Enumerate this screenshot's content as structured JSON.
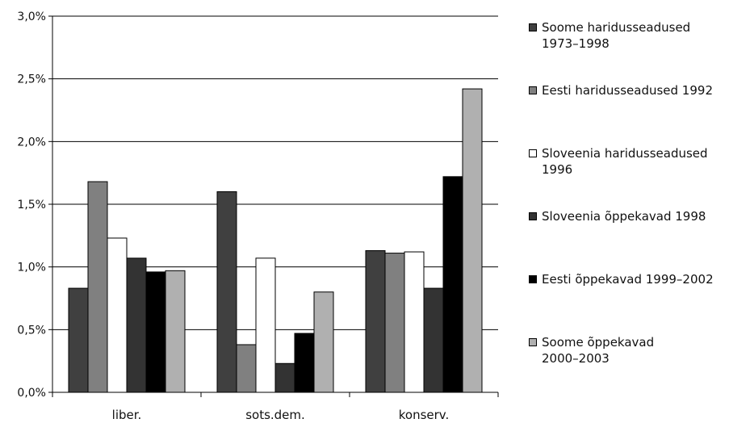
{
  "chart_data": {
    "type": "bar",
    "categories": [
      "liber.",
      "sots.dem.",
      "konserv."
    ],
    "series": [
      {
        "name": "Soome haridusseadused\n1973–1998",
        "values": [
          0.83,
          1.6,
          1.13
        ],
        "color": "#404040"
      },
      {
        "name": "Eesti haridusseadused 1992",
        "values": [
          1.68,
          0.38,
          1.11
        ],
        "color": "#808080"
      },
      {
        "name": "Sloveenia haridusseadused\n1996",
        "values": [
          1.23,
          1.07,
          1.12
        ],
        "color": "#ffffff"
      },
      {
        "name": "Sloveenia õppekavad 1998",
        "values": [
          1.07,
          0.23,
          0.83
        ],
        "color": "#333333"
      },
      {
        "name": "Eesti õppekavad 1999–2002",
        "values": [
          0.96,
          0.47,
          1.72
        ],
        "color": "#000000"
      },
      {
        "name": "Soome õppekavad\n2000–2003",
        "values": [
          0.97,
          0.8,
          2.42
        ],
        "color": "#b0b0b0"
      }
    ],
    "y_ticks": [
      "0,0%",
      "0,5%",
      "1,0%",
      "1,5%",
      "2,0%",
      "2,5%",
      "3,0%"
    ],
    "ylim": [
      0,
      3.0
    ],
    "grid": true,
    "legend_position": "right",
    "title": "",
    "xlabel": "",
    "ylabel": ""
  }
}
